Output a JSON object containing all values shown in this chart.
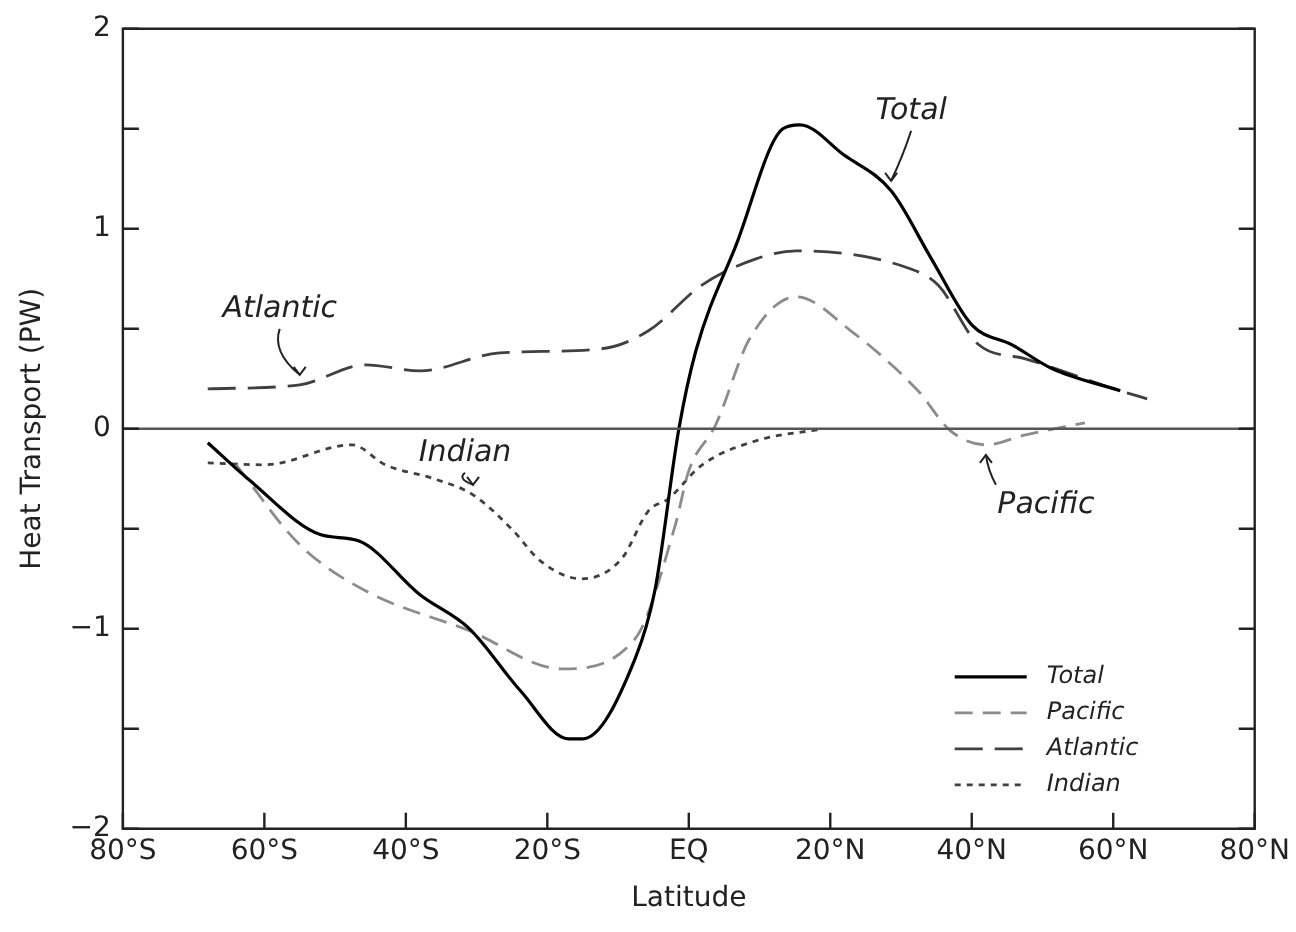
{
  "chart_data": {
    "type": "line",
    "xlabel": "Latitude",
    "ylabel": "Heat Transport (PW)",
    "xlim": [
      -80,
      80
    ],
    "xticks": [
      {
        "value": -80,
        "label": "80°S"
      },
      {
        "value": -60,
        "label": "60°S"
      },
      {
        "value": -40,
        "label": "40°S"
      },
      {
        "value": -20,
        "label": "20°S"
      },
      {
        "value": 0,
        "label": "EQ"
      },
      {
        "value": 20,
        "label": "20°N"
      },
      {
        "value": 40,
        "label": "40°N"
      },
      {
        "value": 60,
        "label": "60°N"
      },
      {
        "value": 80,
        "label": "80°N"
      }
    ],
    "ylim": [
      -2,
      2
    ],
    "yticks": [
      {
        "value": -2,
        "label": "−2"
      },
      {
        "value": -1.5,
        "label": null
      },
      {
        "value": -1,
        "label": "−1"
      },
      {
        "value": -0.5,
        "label": null
      },
      0,
      {
        "value": 0.5,
        "label": null
      },
      1,
      {
        "value": 1.5,
        "label": null
      },
      2
    ],
    "grid": false,
    "legend": "bottom right",
    "marker": "none",
    "ref_lines": [
      {
        "axis": "y",
        "value": 0,
        "color": "#555555"
      }
    ],
    "series": [
      {
        "name": "Total",
        "color": "#000000",
        "line_style": "solid",
        "x": [
          -68,
          -62,
          -52,
          -46.7,
          -38,
          -31,
          -23.8,
          -17,
          -15,
          -7.6,
          -4.8,
          -1.4,
          1,
          6.7,
          13.3,
          15.7,
          21.9,
          28.6,
          34.3,
          40,
          45.7,
          51.4,
          61
        ],
        "values": [
          -0.07,
          -0.26,
          -0.53,
          -0.56,
          -0.83,
          -1.0,
          -1.31,
          -1.55,
          -1.55,
          -1.15,
          -0.81,
          0,
          0.39,
          0.92,
          1.5,
          1.52,
          1.37,
          1.19,
          0.85,
          0.52,
          0.42,
          0.3,
          0.19
        ]
      },
      {
        "name": "Pacific",
        "color": "#8c8c8c",
        "line_style": "dashed",
        "x": [
          -64,
          -55,
          -45.7,
          -31,
          -18,
          -7.6,
          -1.9,
          0,
          3.8,
          8.6,
          15.2,
          22.9,
          32.4,
          37,
          42,
          47.6,
          56
        ],
        "values": [
          -0.18,
          -0.58,
          -0.81,
          -1.01,
          -1.2,
          -1.05,
          -0.48,
          -0.21,
          0.02,
          0.45,
          0.66,
          0.49,
          0.19,
          -0.01,
          -0.08,
          -0.03,
          0.03
        ]
      },
      {
        "name": "Atlantic",
        "color": "#404040",
        "line_style": "dashed",
        "x": [
          -68,
          -55,
          -45.7,
          -38,
          -26.7,
          -12.4,
          -5.7,
          1.9,
          9.5,
          15.2,
          30.5,
          35.2,
          41,
          47.6,
          61,
          64.8
        ],
        "values": [
          0.2,
          0.22,
          0.32,
          0.29,
          0.38,
          0.4,
          0.49,
          0.72,
          0.85,
          0.89,
          0.81,
          0.72,
          0.42,
          0.35,
          0.19,
          0.15
        ]
      },
      {
        "name": "Indian",
        "color": "#404040",
        "line_style": "dotted",
        "x": [
          -68,
          -60,
          -47.6,
          -42.9,
          -36,
          -30.5,
          -24.8,
          -21,
          -15.2,
          -9.5,
          -5.7,
          -2.9,
          1.9,
          9.5,
          19
        ],
        "values": [
          -0.17,
          -0.18,
          -0.08,
          -0.18,
          -0.25,
          -0.33,
          -0.51,
          -0.66,
          -0.75,
          -0.65,
          -0.41,
          -0.35,
          -0.18,
          -0.06,
          0
        ]
      }
    ],
    "annotations": [
      {
        "text": "Atlantic",
        "x": -55,
        "y": 0.22
      },
      {
        "text": "Indian",
        "x": -30.5,
        "y": -0.33
      },
      {
        "text": "Total",
        "x": 28.6,
        "y": 1.19
      },
      {
        "text": "Pacific",
        "x": 42,
        "y": -0.08
      }
    ]
  }
}
